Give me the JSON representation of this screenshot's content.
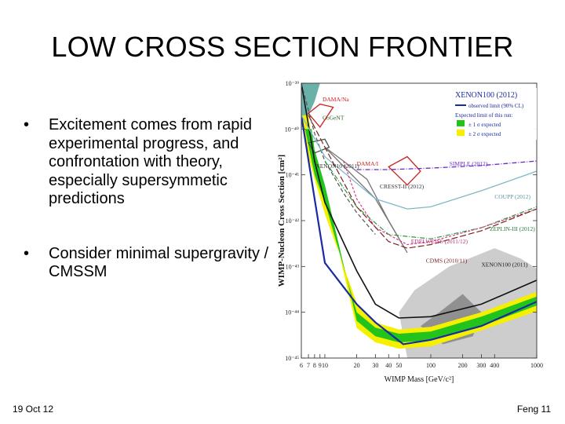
{
  "slide": {
    "title": "LOW CROSS SECTION FRONTIER",
    "bullets": [
      "Excitement comes from rapid experimental progress, and confrontation with theory, especially supersymmetic predictions",
      "Consider minimal supergravity / CMSSM"
    ],
    "bullet_symbol": "•",
    "footer_date": "19 Oct 12",
    "footer_page": "Feng 11"
  },
  "chart_data": {
    "type": "line",
    "xlabel": "WIMP Mass [GeV/c²]",
    "ylabel": "WIMP-Nucleon Cross Section [cm²]",
    "x_scale": "log",
    "y_scale": "log",
    "xlim": [
      6,
      1000
    ],
    "ylim": [
      1e-45,
      1e-39
    ],
    "x_ticks": [
      6,
      7,
      8,
      9,
      10,
      20,
      30,
      40,
      50,
      100,
      200,
      300,
      400,
      1000
    ],
    "x_tick_labels": [
      "6",
      "7",
      "8",
      "9",
      "10",
      "20",
      "30",
      "40",
      "50",
      "100",
      "200",
      "300",
      "400",
      "1000"
    ],
    "y_ticks": [
      1e-39,
      1e-40,
      1e-41,
      1e-42,
      1e-43,
      1e-44,
      1e-45
    ],
    "y_tick_labels": [
      "10⁻³⁹",
      "10⁻⁴⁰",
      "10⁻⁴¹",
      "10⁻⁴²",
      "10⁻⁴³",
      "10⁻⁴⁴",
      "10⁻⁴⁵"
    ],
    "legend": {
      "title": "XENON100 (2012)",
      "placement": "top-right",
      "entries": [
        {
          "label": "observed limit (90% CL)",
          "color": "#1a2aa0"
        },
        {
          "label": "Expected limit of this run:",
          "color": ""
        },
        {
          "label": "± 1 σ expected",
          "color": "#22c41c"
        },
        {
          "label": "± 2 σ expected",
          "color": "#f4f000"
        }
      ]
    },
    "bands": [
      {
        "name": "± 2 σ expected",
        "color": "#f4f000",
        "upper": [
          [
            6,
            2e-40
          ],
          [
            7,
            2.5e-41
          ],
          [
            8,
            8e-42
          ],
          [
            10,
            1.4e-42
          ],
          [
            20,
            1.6e-44
          ],
          [
            30,
            6e-45
          ],
          [
            50,
            4.2e-45
          ],
          [
            100,
            4.8e-45
          ],
          [
            300,
            1e-44
          ],
          [
            1000,
            2.8e-44
          ]
        ],
        "lower": [
          [
            7,
            2e-40
          ],
          [
            8,
            2.2e-41
          ],
          [
            10,
            4e-42
          ],
          [
            20,
            4.5e-45
          ],
          [
            30,
            2.2e-45
          ],
          [
            50,
            1.6e-45
          ],
          [
            100,
            1.8e-45
          ],
          [
            300,
            4e-45
          ],
          [
            1000,
            1.05e-44
          ]
        ]
      },
      {
        "name": "± 1 σ expected",
        "color": "#22c41c",
        "upper": [
          [
            6.5,
            1e-40
          ],
          [
            7,
            4.5e-41
          ],
          [
            8,
            1e-41
          ],
          [
            10,
            2.5e-42
          ],
          [
            20,
            1e-44
          ],
          [
            30,
            4.6e-45
          ],
          [
            50,
            3.4e-45
          ],
          [
            100,
            3.8e-45
          ],
          [
            300,
            8e-45
          ],
          [
            1000,
            2.2e-44
          ]
        ],
        "lower": [
          [
            7.5,
            1e-40
          ],
          [
            8,
            3.5e-41
          ],
          [
            10,
            6e-42
          ],
          [
            20,
            6.5e-45
          ],
          [
            30,
            3e-45
          ],
          [
            50,
            2.2e-45
          ],
          [
            100,
            2.4e-45
          ],
          [
            300,
            5e-45
          ],
          [
            1000,
            1.4e-44
          ]
        ]
      },
      {
        "name": "DAMA/Na",
        "color": "#cc2222",
        "outline": [
          [
            7,
            2.2e-40
          ],
          [
            9,
            1.1e-40
          ],
          [
            12,
            3e-40
          ],
          [
            9,
            3.5e-40
          ],
          [
            7,
            2.2e-40
          ]
        ]
      },
      {
        "name": "DAMA/I",
        "color": "#cc2222",
        "outline": [
          [
            40,
            1.5e-41
          ],
          [
            60,
            6e-42
          ],
          [
            80,
            1.2e-41
          ],
          [
            60,
            2.5e-41
          ],
          [
            40,
            1.5e-41
          ]
        ]
      },
      {
        "name": "CoGeNT",
        "color": "#445544",
        "outline": [
          [
            7,
            5e-41
          ],
          [
            8,
            3e-41
          ],
          [
            11,
            4e-41
          ],
          [
            10,
            6e-41
          ],
          [
            7,
            5e-41
          ]
        ]
      },
      {
        "name": "CRESST-II (2012)",
        "color": "#777777",
        "outline": [
          [
            10,
            4e-41
          ],
          [
            30,
            3e-42
          ],
          [
            60,
            2e-43
          ],
          [
            40,
            1e-42
          ],
          [
            25,
            8e-42
          ],
          [
            15,
            2e-41
          ],
          [
            10,
            4e-41
          ]
        ]
      }
    ],
    "series": [
      {
        "name": "XENON100 (2012)",
        "color": "#1a2aa0",
        "width": 2.2,
        "points": [
          [
            6,
            2e-40
          ],
          [
            8,
            3e-42
          ],
          [
            10,
            1.2e-43
          ],
          [
            20,
            1.5e-44
          ],
          [
            30,
            6e-45
          ],
          [
            55,
            2e-45
          ],
          [
            100,
            2.5e-45
          ],
          [
            300,
            5e-45
          ],
          [
            1000,
            1.7e-44
          ]
        ]
      },
      {
        "name": "XENON100 (2011)",
        "color": "#111111",
        "width": 1.6,
        "points": [
          [
            6,
            1e-39
          ],
          [
            8,
            2e-41
          ],
          [
            10,
            2.5e-42
          ],
          [
            20,
            8e-44
          ],
          [
            30,
            1.5e-44
          ],
          [
            50,
            7.5e-45
          ],
          [
            100,
            8e-45
          ],
          [
            300,
            1.5e-44
          ],
          [
            1000,
            5e-44
          ]
        ]
      },
      {
        "name": "XENON10 (2011)",
        "color": "#555555",
        "width": 1.2,
        "dash": "5,3",
        "points": [
          [
            6,
            1e-39
          ],
          [
            8,
            8e-41
          ],
          [
            10,
            2e-41
          ],
          [
            15,
            4e-42
          ],
          [
            20,
            1.5e-42
          ],
          [
            30,
            5e-43
          ]
        ]
      },
      {
        "name": "COUPP (2012)",
        "color": "#7fb8c8",
        "width": 1.3,
        "points": [
          [
            6,
            2e-40
          ],
          [
            10,
            2.5e-41
          ],
          [
            30,
            3e-42
          ],
          [
            60,
            1.8e-42
          ],
          [
            100,
            2e-42
          ],
          [
            300,
            4.5e-42
          ],
          [
            1000,
            1.2e-41
          ]
        ]
      },
      {
        "name": "SIMPLE (2012)",
        "color": "#6a2ac4",
        "width": 1.3,
        "dash": "6,2,1,2",
        "points": [
          [
            20,
            1.3e-41
          ],
          [
            40,
            1.3e-41
          ],
          [
            100,
            1.4e-41
          ],
          [
            300,
            1.6e-41
          ],
          [
            1000,
            2e-41
          ]
        ]
      },
      {
        "name": "ZEPLIN-III (2012)",
        "color": "#2a9a3a",
        "width": 1.2,
        "dash": "6,2,1,2",
        "points": [
          [
            10,
            2e-41
          ],
          [
            20,
            2e-42
          ],
          [
            40,
            5e-43
          ],
          [
            100,
            4e-43
          ],
          [
            300,
            7e-43
          ],
          [
            1000,
            2e-42
          ]
        ]
      },
      {
        "name": "EDELWEISS (2011/12)",
        "color": "#d43c8a",
        "width": 1.2,
        "dash": "3,2",
        "points": [
          [
            15,
            2e-41
          ],
          [
            20,
            3e-42
          ],
          [
            30,
            7e-43
          ],
          [
            60,
            3e-43
          ],
          [
            100,
            3.5e-43
          ],
          [
            300,
            7e-43
          ],
          [
            1000,
            1.8e-42
          ]
        ]
      },
      {
        "name": "CDMS (2010/11)",
        "color": "#7a2424",
        "width": 1.2,
        "dash": "8,3",
        "points": [
          [
            7,
            2e-40
          ],
          [
            10,
            4e-41
          ],
          [
            20,
            2e-42
          ],
          [
            40,
            3.5e-43
          ],
          [
            60,
            2.5e-43
          ],
          [
            100,
            3e-43
          ],
          [
            300,
            6e-43
          ],
          [
            1000,
            1.8e-42
          ]
        ]
      }
    ],
    "labels": [
      {
        "text": "DAMA/Na",
        "color": "#cc2222",
        "x": 9.5,
        "y": 4e-40
      },
      {
        "text": "CoGeNT",
        "color": "#2a6a2a",
        "x": 9.5,
        "y": 1.6e-40
      },
      {
        "text": "DAMA/I",
        "color": "#cc2222",
        "x": 20,
        "y": 1.6e-41
      },
      {
        "text": "XENON10 (2011)",
        "color": "#333333",
        "x": 8.2,
        "y": 1.4e-41
      },
      {
        "text": "CRESST-II (2012)",
        "color": "#333333",
        "x": 33,
        "y": 5e-42
      },
      {
        "text": "SIMPLE (2012)",
        "color": "#6a2ac4",
        "x": 150,
        "y": 1.6e-41
      },
      {
        "text": "COUPP (2012)",
        "color": "#5a96a8",
        "x": 400,
        "y": 3e-42
      },
      {
        "text": "ZEPLIN-III (2012)",
        "color": "#2a7a3a",
        "x": 360,
        "y": 6e-43
      },
      {
        "text": "EDELWEISS (2011/12)",
        "color": "#c0307a",
        "x": 65,
        "y": 3.2e-43
      },
      {
        "text": "CDMS (2010/11)",
        "color": "#7a2424",
        "x": 90,
        "y": 1.2e-43
      },
      {
        "text": "XENON100 (2011)",
        "color": "#222222",
        "x": 300,
        "y": 1e-43
      }
    ],
    "regions": [
      {
        "name": "upper-left teal region",
        "color": "#5aa8a0",
        "outline": [
          [
            6,
            1e-39
          ],
          [
            9,
            1e-39
          ],
          [
            8,
            4e-40
          ],
          [
            7,
            2e-40
          ],
          [
            6,
            1e-40
          ]
        ]
      },
      {
        "name": "light gray theory region",
        "color": "#c8c8c8",
        "outline": [
          [
            50,
            1e-44
          ],
          [
            70,
            3e-44
          ],
          [
            150,
            1e-43
          ],
          [
            400,
            2.5e-43
          ],
          [
            700,
            1.5e-43
          ],
          [
            1000,
            9e-44
          ],
          [
            1000,
            1e-45
          ],
          [
            60,
            1e-45
          ]
        ]
      },
      {
        "name": "dark gray theory region",
        "color": "#8a8a8a",
        "outline": [
          [
            80,
            5e-45
          ],
          [
            120,
            1e-44
          ],
          [
            200,
            2.5e-44
          ],
          [
            300,
            1e-44
          ],
          [
            250,
            3e-45
          ],
          [
            130,
            2e-45
          ]
        ]
      }
    ]
  }
}
